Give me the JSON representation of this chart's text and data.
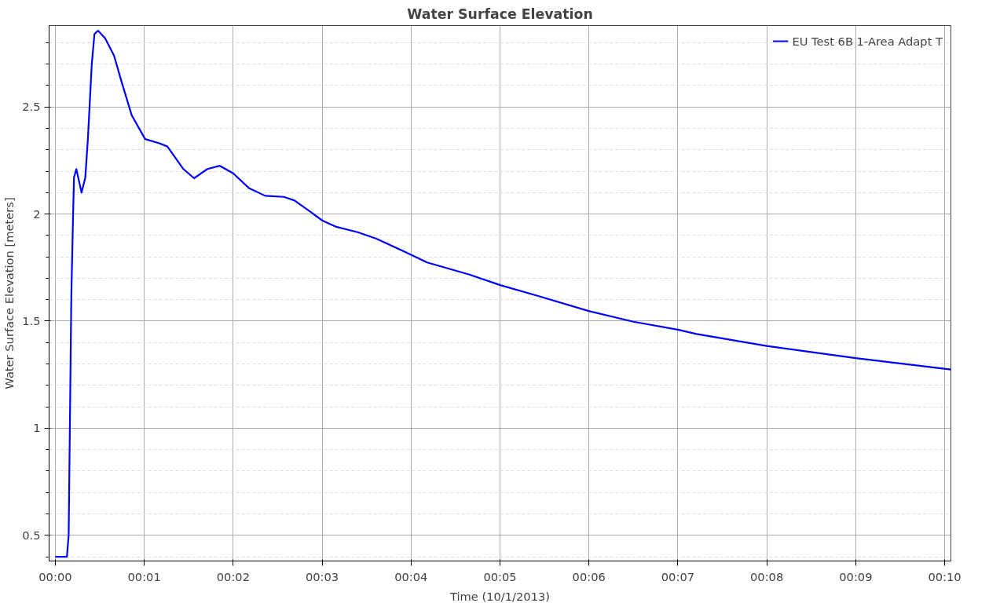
{
  "chart_data": {
    "type": "line",
    "title": "Water Surface Elevation",
    "xlabel": "Time (10/1/2013)",
    "ylabel": "Water Surface Elevation [meters]",
    "x": [
      0,
      0.13,
      0.15,
      0.18,
      0.2,
      0.21,
      0.236,
      0.295,
      0.337,
      0.366,
      0.41,
      0.44,
      0.48,
      0.56,
      0.66,
      0.75,
      0.86,
      1.01,
      1.17,
      1.26,
      1.44,
      1.56,
      1.71,
      1.85,
      2.0,
      2.18,
      2.36,
      2.57,
      2.69,
      2.87,
      3.0,
      3.16,
      3.4,
      3.61,
      4.0,
      4.18,
      4.65,
      5.01,
      5.43,
      5.99,
      6.5,
      7.0,
      7.21,
      8.0,
      9.0,
      10.07
    ],
    "series": [
      {
        "name": "EU Test 6B 1-Area Adapt T",
        "color": "#0000ff",
        "values": [
          0.4,
          0.4,
          0.5,
          1.62,
          2.0,
          2.17,
          2.21,
          2.1,
          2.17,
          2.35,
          2.7,
          2.84,
          2.856,
          2.82,
          2.74,
          2.61,
          2.46,
          2.35,
          2.33,
          2.315,
          2.21,
          2.167,
          2.21,
          2.225,
          2.19,
          2.12,
          2.085,
          2.08,
          2.063,
          2.01,
          1.97,
          1.94,
          1.915,
          1.885,
          1.81,
          1.774,
          1.718,
          1.667,
          1.617,
          1.548,
          1.497,
          1.46,
          1.44,
          1.384,
          1.327,
          1.274
        ]
      }
    ],
    "xlim": [
      -0.07,
      10.07
    ],
    "ylim": [
      0.38,
      2.88
    ],
    "xticks": [
      {
        "value": 0,
        "label": "00:00"
      },
      {
        "value": 1,
        "label": "00:01"
      },
      {
        "value": 2,
        "label": "00:02"
      },
      {
        "value": 3,
        "label": "00:03"
      },
      {
        "value": 4,
        "label": "00:04"
      },
      {
        "value": 5,
        "label": "00:05"
      },
      {
        "value": 6,
        "label": "00:06"
      },
      {
        "value": 7,
        "label": "00:07"
      },
      {
        "value": 8,
        "label": "00:08"
      },
      {
        "value": 9,
        "label": "00:09"
      },
      {
        "value": 10,
        "label": "00:10"
      }
    ],
    "yticks": [
      0.5,
      1,
      1.5,
      2,
      2.5
    ],
    "grid": true,
    "legend": "top right",
    "line_style": "solid"
  }
}
